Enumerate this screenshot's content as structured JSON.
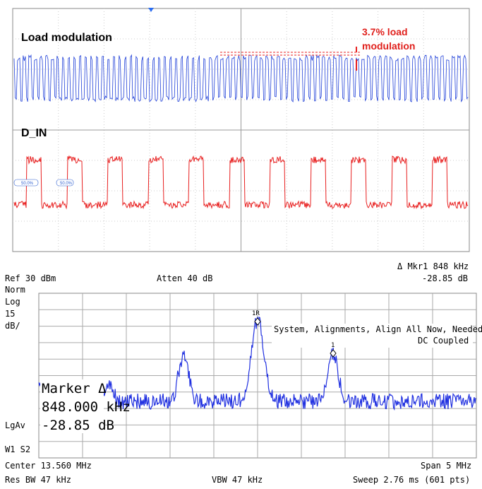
{
  "oscilloscope": {
    "channel_labels": [
      "Load modulation",
      "D_IN"
    ],
    "annotation": [
      "3.7% load",
      "modulation"
    ],
    "cursor_labels": [
      "50.0%",
      "50.0%"
    ]
  },
  "spectrum_analyzer": {
    "marker_readout": [
      "Δ Mkr1  848 kHz",
      "-28.85 dB"
    ],
    "ref": "Ref 30 dBm",
    "atten": "Atten 40 dB",
    "left_labels": [
      "Norm",
      "Log",
      "15",
      "dB/"
    ],
    "status": [
      "System, Alignments, Align All Now, Needed",
      "DC Coupled"
    ],
    "marker_box": [
      "Marker Δ",
      "848.000 kHz",
      "-28.85 dB"
    ],
    "lgav": "LgAv",
    "w1s2": "W1  S2",
    "peak_labels": [
      "1R",
      "1"
    ],
    "footer": {
      "center": "Center 13.560 MHz",
      "span": "Span 5 MHz",
      "rbw": "Res BW 47 kHz",
      "vbw": "VBW 47 kHz",
      "sweep": "Sweep 2.76 ms (601 pts)"
    }
  }
}
